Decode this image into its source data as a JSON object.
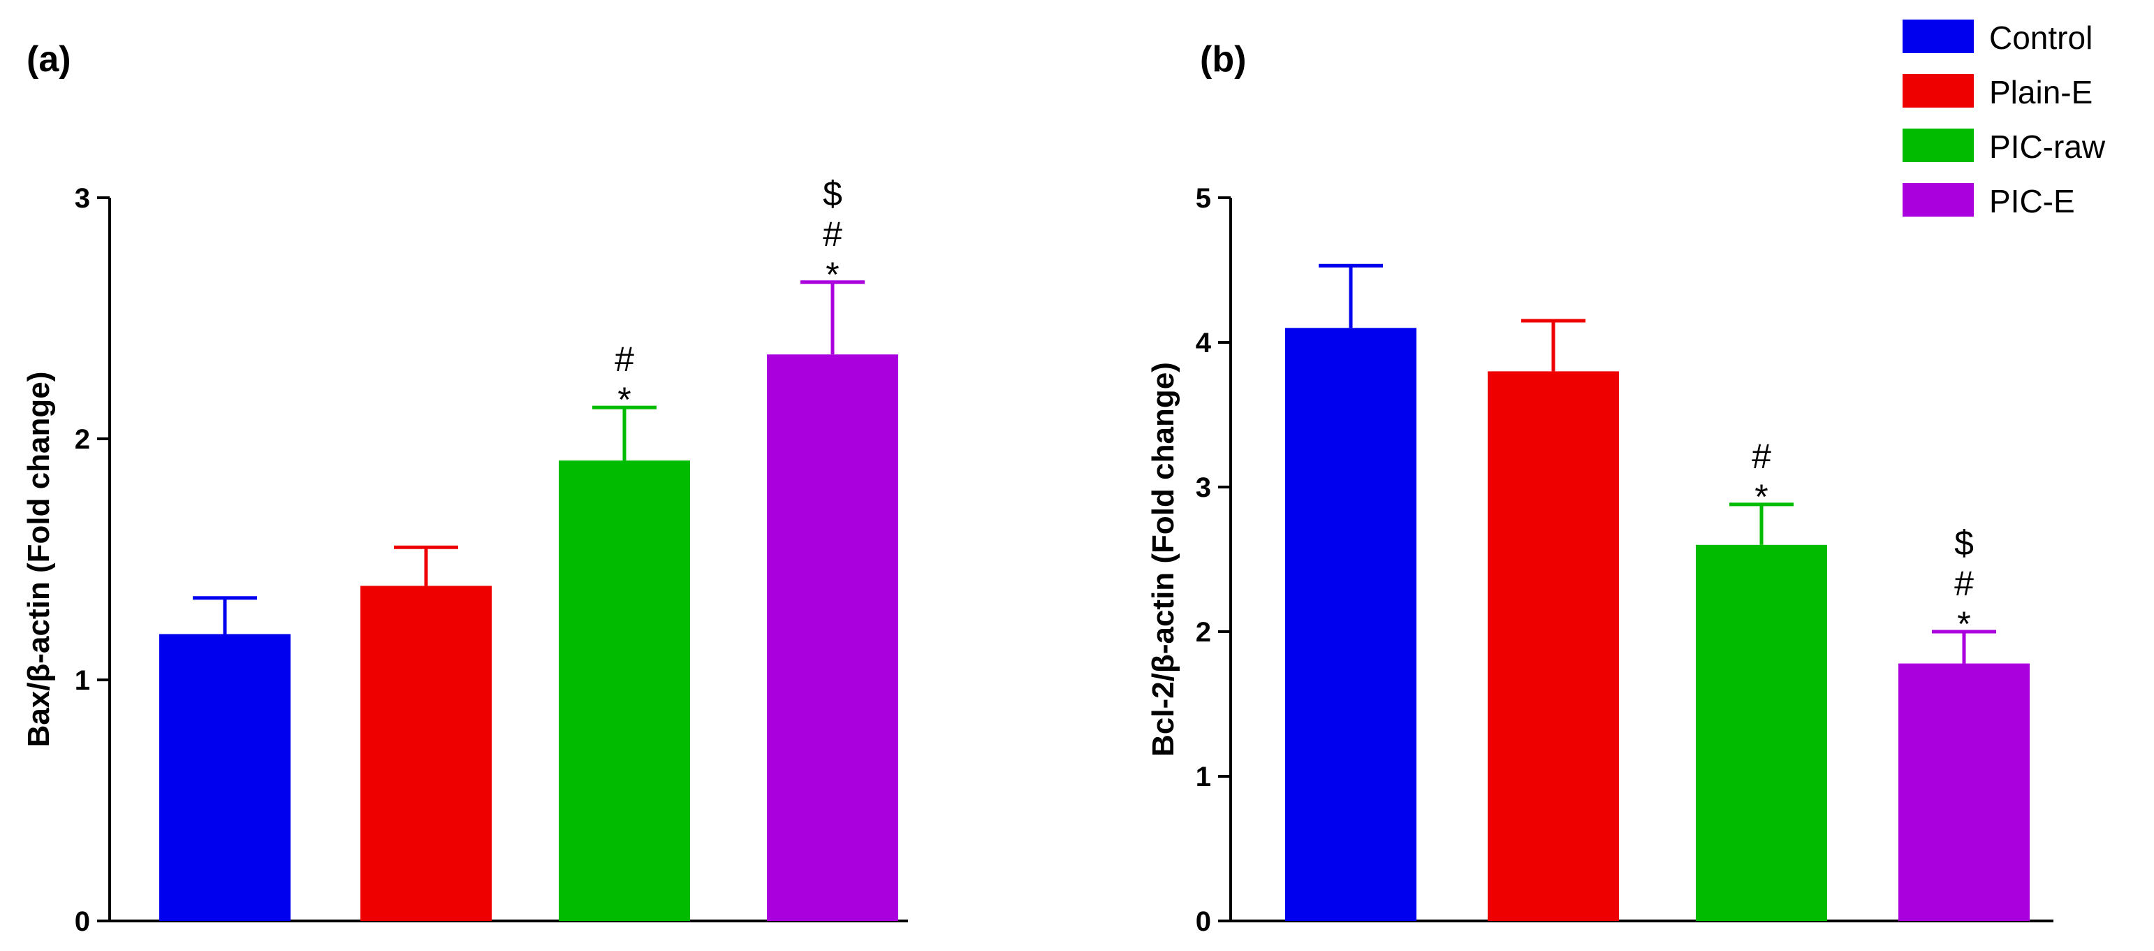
{
  "chart_data": [
    {
      "type": "bar",
      "panel_label": "(a)",
      "title": "",
      "xlabel": "",
      "ylabel": "Bax/β-actin (Fold change)",
      "ylim": [
        0,
        3
      ],
      "yticks": [
        0,
        1,
        2,
        3
      ],
      "grid": false,
      "categories": [
        "Control",
        "Plain-E",
        "PIC-raw",
        "PIC-E"
      ],
      "values": [
        1.19,
        1.39,
        1.91,
        2.35
      ],
      "error_upper": [
        0.15,
        0.16,
        0.22,
        0.3
      ],
      "annotations": [
        [],
        [],
        [
          "#",
          "*"
        ],
        [
          "$",
          "#",
          "*"
        ]
      ]
    },
    {
      "type": "bar",
      "panel_label": "(b)",
      "title": "",
      "xlabel": "",
      "ylabel": "Bcl-2/β-actin (Fold change)",
      "ylim": [
        0,
        5
      ],
      "yticks": [
        0,
        1,
        2,
        3,
        4,
        5
      ],
      "grid": false,
      "categories": [
        "Control",
        "Plain-E",
        "PIC-raw",
        "PIC-E"
      ],
      "values": [
        4.1,
        3.8,
        2.6,
        1.78
      ],
      "error_upper": [
        0.43,
        0.35,
        0.28,
        0.22
      ],
      "annotations": [
        [],
        [],
        [
          "#",
          "*"
        ],
        [
          "$",
          "#",
          "*"
        ]
      ]
    }
  ],
  "legend": {
    "placement": "top-right",
    "items": [
      {
        "label": "Control",
        "color": "#0000ee"
      },
      {
        "label": "Plain-E",
        "color": "#ee0000"
      },
      {
        "label": "PIC-raw",
        "color": "#00bb00"
      },
      {
        "label": "PIC-E",
        "color": "#aa00dd"
      }
    ]
  }
}
